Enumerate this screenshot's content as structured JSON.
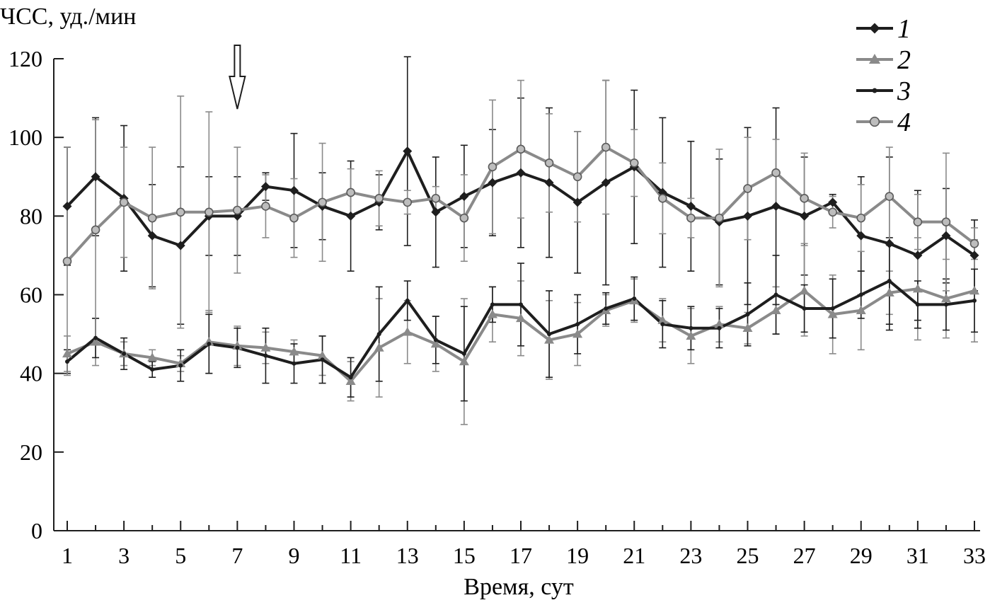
{
  "chart_data": {
    "type": "line",
    "title": "",
    "ylabel": "ЧСС, уд./мин",
    "xlabel": "Время, сут",
    "ylim": [
      0,
      120
    ],
    "xlim": [
      1,
      33
    ],
    "yticks": [
      0,
      20,
      40,
      60,
      80,
      100,
      120
    ],
    "xticks": [
      1,
      3,
      5,
      7,
      9,
      11,
      13,
      15,
      17,
      19,
      21,
      23,
      25,
      27,
      29,
      31,
      33
    ],
    "grid": false,
    "legend_position": "top-right",
    "annotation": {
      "type": "arrow",
      "direction": "down",
      "x": 7
    },
    "x": [
      1,
      2,
      3,
      4,
      5,
      6,
      7,
      8,
      9,
      10,
      11,
      12,
      13,
      14,
      15,
      16,
      17,
      18,
      19,
      20,
      21,
      22,
      23,
      24,
      25,
      26,
      27,
      28,
      29,
      30,
      31,
      32,
      33
    ],
    "series": [
      {
        "name": "1",
        "color": "#1e1e1e",
        "marker": "diamond",
        "values": [
          82.5,
          90,
          84.5,
          75,
          72.5,
          80,
          80,
          87.5,
          86.5,
          82.5,
          80,
          83.5,
          96.5,
          81,
          85,
          88.5,
          91,
          88.5,
          83.5,
          88.5,
          92.5,
          86,
          82.5,
          78.5,
          80,
          82.5,
          80,
          83.5,
          75,
          73,
          70,
          75,
          70
        ],
        "error": [
          15,
          15,
          18.5,
          13,
          20,
          10,
          10,
          3.5,
          14.5,
          8.5,
          14,
          7,
          24,
          14,
          13,
          13.5,
          19,
          19,
          18,
          26,
          19.5,
          19,
          16.5,
          16,
          22.5,
          25,
          15,
          2,
          15,
          22,
          16.5,
          12,
          9
        ]
      },
      {
        "name": "2",
        "color": "#8a8a8a",
        "marker": "triangle",
        "values": [
          45,
          48,
          45,
          44,
          42.5,
          48,
          47,
          46.5,
          45.5,
          44.5,
          38,
          46.5,
          50.5,
          47.5,
          43,
          55,
          54,
          48.5,
          50,
          56,
          58.5,
          53.5,
          49.5,
          52.5,
          51.5,
          56,
          61,
          55,
          56,
          60.5,
          61.5,
          59,
          61
        ],
        "error": [
          4.5,
          6,
          3,
          2,
          2,
          8,
          5,
          4,
          3,
          5,
          5,
          12.5,
          8,
          7,
          16,
          7,
          9.5,
          10,
          8,
          4,
          5.5,
          5.5,
          7,
          4.5,
          4,
          6,
          11.5,
          10,
          10,
          5.5,
          13,
          10,
          13
        ]
      },
      {
        "name": "3",
        "color": "#1e1e1e",
        "marker": "dot",
        "values": [
          43,
          49,
          45,
          41,
          42,
          47.5,
          46.5,
          44.5,
          42.5,
          43.5,
          39,
          50,
          58.5,
          48.5,
          45,
          57.5,
          57.5,
          50,
          52.5,
          56.5,
          59,
          52.5,
          51.5,
          51.5,
          55,
          60,
          56.5,
          56.5,
          60,
          63.5,
          57.5,
          57.5,
          58.5
        ],
        "error": [
          3,
          5,
          4,
          2,
          4,
          7.5,
          5,
          7,
          5,
          6,
          5,
          12,
          5,
          6,
          12,
          4.5,
          10.5,
          11,
          7.5,
          4,
          5.5,
          6,
          5.5,
          5,
          8,
          10,
          6,
          7.5,
          6,
          11,
          6,
          6.5,
          8
        ]
      },
      {
        "name": "4",
        "color": "#8a8a8a",
        "marker": "circle",
        "values": [
          68.5,
          76.5,
          83.5,
          79.5,
          81,
          81,
          81.5,
          82.5,
          79.5,
          83.5,
          86,
          84.5,
          83.5,
          84.5,
          79.5,
          92.5,
          97,
          93.5,
          90,
          97.5,
          93.5,
          84.5,
          79.5,
          79.5,
          87,
          91,
          84.5,
          81,
          79.5,
          85,
          78.5,
          78.5,
          73
        ],
        "error": [
          29,
          28,
          14,
          18,
          29.5,
          25.5,
          16,
          8,
          10,
          15,
          6,
          7,
          3,
          3,
          11,
          17,
          17.5,
          12.5,
          11.5,
          17,
          8.5,
          9,
          5,
          17.5,
          13,
          8.5,
          11.5,
          4,
          8.5,
          12.5,
          7,
          17.5,
          4
        ]
      }
    ]
  }
}
